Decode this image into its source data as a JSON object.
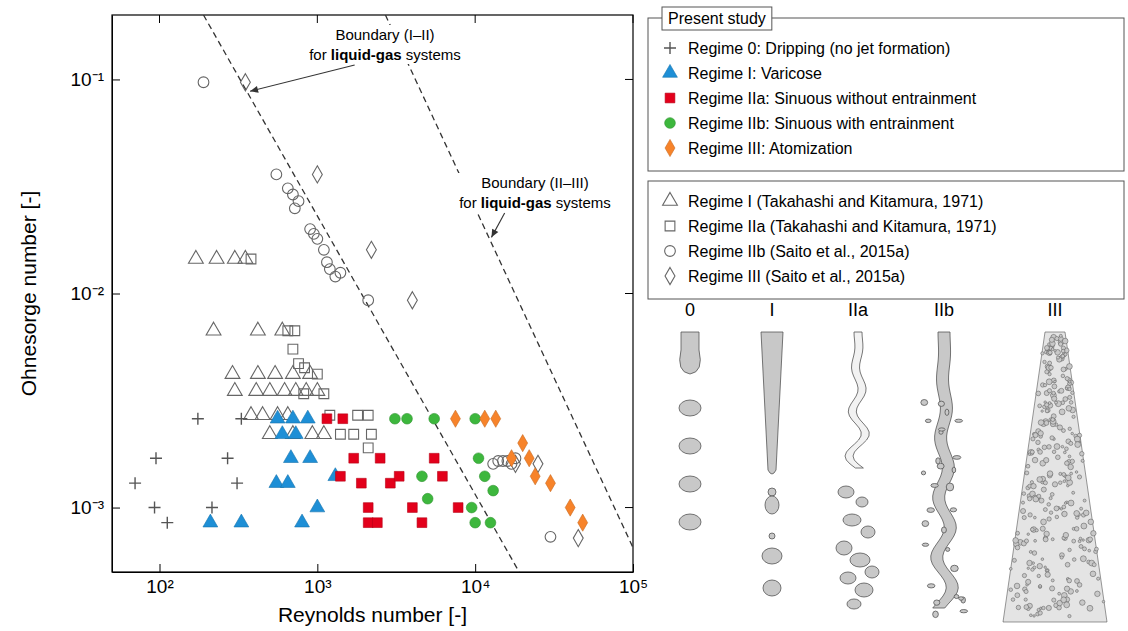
{
  "chart_data": {
    "type": "scatter",
    "xlabel": "Reynolds number [-]",
    "ylabel": "Ohnesorge number [-]",
    "log": true,
    "grid": false,
    "legend": "right",
    "legend_title": "Present study",
    "xlim": [
      50,
      100000
    ],
    "ylim": [
      0.0005,
      0.2
    ],
    "xticks": [
      {
        "value": 100,
        "label": "10²"
      },
      {
        "value": 1000,
        "label": "10³"
      },
      {
        "value": 10000,
        "label": "10⁴"
      },
      {
        "value": 100000,
        "label": "10⁵"
      }
    ],
    "yticks": [
      {
        "value": 0.001,
        "label": "10⁻³"
      },
      {
        "value": 0.01,
        "label": "10⁻²"
      },
      {
        "value": 0.1,
        "label": "10⁻¹"
      }
    ],
    "series": [
      {
        "name": "Regime 0: Dripping (no jet formation)",
        "color": "#555555",
        "marker": "plus",
        "x": [
          70,
          95,
          93,
          112,
          175,
          330,
          215,
          270,
          310
        ],
        "values": [
          0.0013,
          0.0017,
          0.001,
          0.00085,
          0.0026,
          0.0026,
          0.001,
          0.0017,
          0.0013
        ]
      },
      {
        "name": "Regime I: Varicose",
        "color": "#1e8fd6",
        "marker": "triangle",
        "x": [
          210,
          330,
          800,
          560,
          600,
          680,
          730,
          870,
          1000,
          550,
          650,
          900,
          700,
          1300
        ],
        "values": [
          0.00085,
          0.00085,
          0.00085,
          0.0026,
          0.0022,
          0.0017,
          0.0022,
          0.0026,
          0.001,
          0.0013,
          0.0013,
          0.0017,
          0.0026,
          0.0014
        ]
      },
      {
        "name": "Regime IIa: Sinuous without entrainment",
        "color": "#e3001b",
        "marker": "square",
        "x": [
          1150,
          1450,
          1400,
          1700,
          2100,
          2100,
          2400,
          2900,
          3300,
          4000,
          4600,
          5500,
          6200,
          7800,
          2500,
          1900
        ],
        "values": [
          0.0026,
          0.0026,
          0.0014,
          0.0017,
          0.001,
          0.00085,
          0.00085,
          0.0013,
          0.0014,
          0.001,
          0.00085,
          0.0017,
          0.0014,
          0.001,
          0.0017,
          0.0013
        ]
      },
      {
        "name": "Regime IIb: Sinuous with entrainment",
        "color": "#3db73d",
        "marker": "circle",
        "x": [
          3100,
          3700,
          5500,
          10000,
          4600,
          10500,
          11500,
          9500,
          10000,
          12500,
          13000,
          5000
        ],
        "values": [
          0.0026,
          0.0026,
          0.0026,
          0.0026,
          0.0014,
          0.0017,
          0.0014,
          0.001,
          0.00085,
          0.00085,
          0.0012,
          0.0011
        ]
      },
      {
        "name": "Regime III: Atomization",
        "color": "#f7832a",
        "marker": "diamond",
        "x": [
          7500,
          11500,
          13500,
          17000,
          20000,
          22000,
          24000,
          30000,
          40000,
          48000
        ],
        "values": [
          0.0026,
          0.0026,
          0.0026,
          0.0017,
          0.002,
          0.0017,
          0.0014,
          0.0013,
          0.001,
          0.00085
        ]
      }
    ],
    "reference_series": [
      {
        "name": "Regime I (Takahashi and Kitamura, 1971)",
        "color": "#666666",
        "marker": "triangle-open",
        "x": [
          170,
          230,
          300,
          350,
          220,
          420,
          600,
          290,
          420,
          540,
          700,
          900,
          300,
          410,
          500,
          620,
          730,
          850,
          1000,
          380,
          450,
          560,
          650,
          500,
          700,
          930,
          1100
        ],
        "values": [
          0.0145,
          0.0145,
          0.0145,
          0.0145,
          0.0067,
          0.0067,
          0.0067,
          0.0042,
          0.0042,
          0.0042,
          0.0042,
          0.0042,
          0.0035,
          0.0035,
          0.0035,
          0.0035,
          0.0035,
          0.0035,
          0.0035,
          0.0027,
          0.0027,
          0.0027,
          0.0027,
          0.0022,
          0.0022,
          0.0022,
          0.0022
        ]
      },
      {
        "name": "Regime IIa (Takahashi and Kitamura, 1971)",
        "color": "#666666",
        "marker": "square-open",
        "x": [
          380,
          650,
          720,
          700,
          760,
          830,
          1000,
          820,
          1100,
          1200,
          1800,
          2100,
          1400,
          1700,
          2200,
          2100
        ],
        "values": [
          0.0145,
          0.0067,
          0.0067,
          0.0055,
          0.0047,
          0.0045,
          0.0042,
          0.0034,
          0.0034,
          0.0027,
          0.0027,
          0.0027,
          0.0022,
          0.0022,
          0.0022,
          0.0019
        ]
      },
      {
        "name": "Regime IIb (Saito et al., 2015a)",
        "color": "#666666",
        "marker": "circle-open",
        "x": [
          190,
          550,
          650,
          700,
          720,
          760,
          900,
          950,
          1000,
          1100,
          1150,
          1200,
          1300,
          1400,
          2100,
          13000,
          14000,
          15000,
          16000,
          17000,
          18000,
          30000
        ],
        "values": [
          0.097,
          0.036,
          0.031,
          0.029,
          0.025,
          0.027,
          0.02,
          0.019,
          0.018,
          0.016,
          0.014,
          0.013,
          0.012,
          0.0125,
          0.0093,
          0.0016,
          0.00165,
          0.00165,
          0.00165,
          0.0016,
          0.0017,
          0.00073
        ]
      },
      {
        "name": "Regime III (Saito et al., 2015a)",
        "color": "#666666",
        "marker": "diamond-open",
        "x": [
          350,
          1000,
          2200,
          4000,
          18000,
          25000,
          45000
        ],
        "values": [
          0.097,
          0.036,
          0.016,
          0.0093,
          0.0016,
          0.0016,
          0.00072
        ]
      }
    ],
    "lines": [
      {
        "x": [
          190,
          19000
        ],
        "values": [
          0.2,
          0.0005
        ],
        "color": "#333333",
        "line_style": "dashed",
        "label": [
          [
            "Boundary (I–II)"
          ],
          [
            "for ",
            "liquid-gas",
            " systems"
          ]
        ]
      },
      {
        "x": [
          2700,
          100000
        ],
        "values": [
          0.2,
          0.00065
        ],
        "color": "#333333",
        "line_style": "dashed",
        "label": [
          [
            "Boundary (II–III)"
          ],
          [
            "for ",
            "liquid-gas",
            " systems"
          ]
        ]
      }
    ],
    "regime_images": [
      "0",
      "I",
      "IIa",
      "IIb",
      "III"
    ]
  }
}
